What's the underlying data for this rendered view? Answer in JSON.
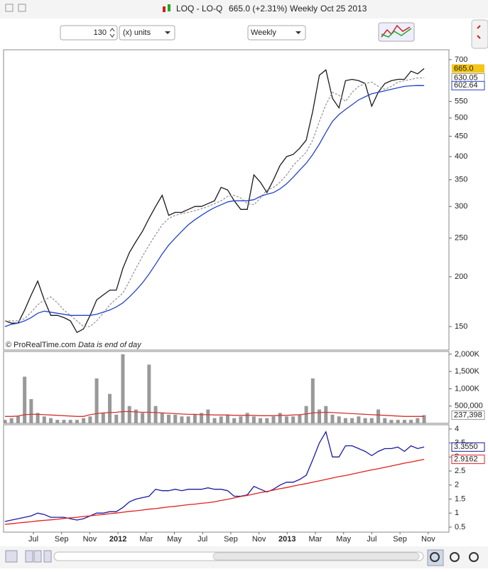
{
  "header": {
    "symbol": "LOQ - LO-Q",
    "quote": "665.0 (+2.31%)",
    "period": "Weekly",
    "date": "Oct 25 2013"
  },
  "toolbar": {
    "units_count": "130",
    "units": "(x) units",
    "timeframe": "Weekly"
  },
  "footer": {
    "copyright": "© ProRealTime.com",
    "note": "Data is end of day"
  },
  "chart_data": [
    {
      "type": "line",
      "log_scale": true,
      "ylim": [
        131,
        741
      ],
      "yticks": [
        150,
        200,
        250,
        300,
        350,
        400,
        450,
        500,
        550,
        700
      ],
      "series": [
        {
          "name": "Close",
          "color": "#1a1a1a",
          "label_bg": "#f5c518",
          "values": [
            155,
            153,
            153,
            165,
            180,
            195,
            175,
            160,
            160,
            158,
            155,
            145,
            148,
            160,
            175,
            180,
            185,
            185,
            210,
            230,
            245,
            260,
            280,
            300,
            320,
            285,
            290,
            290,
            295,
            300,
            300,
            305,
            310,
            335,
            330,
            310,
            295,
            295,
            360,
            345,
            325,
            350,
            380,
            400,
            405,
            420,
            440,
            520,
            640,
            660,
            560,
            530,
            620,
            625,
            620,
            610,
            535,
            580,
            610,
            620,
            625,
            625,
            655,
            645,
            665
          ],
          "value_labels": [
            null,
            null,
            null,
            null,
            null,
            null,
            null,
            null,
            null,
            null,
            null,
            null,
            null,
            null,
            null,
            null,
            null,
            null,
            null,
            null,
            null,
            null,
            null,
            null,
            null,
            null,
            null,
            null,
            null,
            null,
            null,
            null,
            null,
            null,
            null,
            null,
            null,
            null,
            null,
            null,
            null,
            null,
            null,
            null,
            null,
            null,
            null,
            null,
            null,
            null,
            null,
            null,
            null,
            null,
            null,
            null,
            null,
            null,
            null,
            null,
            null,
            null,
            null,
            null,
            "665.0"
          ]
        },
        {
          "name": "MA 10",
          "color": "#999999",
          "dashed": true,
          "values": [
            155,
            155,
            155,
            157,
            163,
            170,
            175,
            178,
            172,
            165,
            160,
            155,
            150,
            150,
            155,
            162,
            170,
            176,
            182,
            195,
            210,
            225,
            240,
            255,
            270,
            280,
            285,
            288,
            290,
            293,
            296,
            300,
            305,
            310,
            318,
            320,
            315,
            305,
            303,
            315,
            330,
            335,
            345,
            360,
            380,
            395,
            410,
            440,
            490,
            540,
            580,
            570,
            550,
            580,
            600,
            610,
            615,
            600,
            590,
            600,
            615,
            620,
            625,
            630,
            630.05
          ]
        },
        {
          "name": "MA 26",
          "color": "#2443c8",
          "values": [
            150,
            152,
            153,
            155,
            158,
            162,
            164,
            163,
            162,
            161,
            160,
            160,
            160,
            160,
            161,
            163,
            165,
            168,
            172,
            178,
            185,
            193,
            203,
            215,
            228,
            240,
            250,
            260,
            270,
            278,
            285,
            292,
            298,
            303,
            308,
            310,
            310,
            310,
            312,
            318,
            322,
            325,
            332,
            342,
            355,
            370,
            385,
            405,
            430,
            460,
            490,
            510,
            525,
            540,
            555,
            565,
            575,
            580,
            585,
            590,
            595,
            600,
            602,
            603,
            602.64
          ]
        }
      ]
    },
    {
      "type": "bar",
      "ylim": [
        0,
        2080000
      ],
      "yticks": [
        {
          "value": 500000,
          "label": "500,000"
        },
        {
          "value": 1000000,
          "label": "1,000K"
        },
        {
          "value": 1500000,
          "label": "1,500K"
        },
        {
          "value": 2000000,
          "label": "2,000K"
        }
      ],
      "series": [
        {
          "name": "Volume",
          "color": "#999999",
          "values": [
            100000,
            150000,
            200000,
            1350000,
            700000,
            300000,
            200000,
            150000,
            100000,
            100000,
            100000,
            100000,
            150000,
            200000,
            1300000,
            300000,
            850000,
            250000,
            2000000,
            500000,
            400000,
            300000,
            1700000,
            500000,
            300000,
            250000,
            250000,
            200000,
            200000,
            250000,
            300000,
            400000,
            150000,
            200000,
            250000,
            150000,
            200000,
            300000,
            200000,
            150000,
            150000,
            200000,
            300000,
            200000,
            200000,
            250000,
            500000,
            1300000,
            400000,
            500000,
            250000,
            200000,
            150000,
            150000,
            200000,
            150000,
            150000,
            400000,
            150000,
            100000,
            100000,
            100000,
            100000,
            150000,
            237398
          ],
          "value_labels": [
            null,
            null,
            null,
            null,
            null,
            null,
            null,
            null,
            null,
            null,
            null,
            null,
            null,
            null,
            null,
            null,
            null,
            null,
            null,
            null,
            null,
            null,
            null,
            null,
            null,
            null,
            null,
            null,
            null,
            null,
            null,
            null,
            null,
            null,
            null,
            null,
            null,
            null,
            null,
            null,
            null,
            null,
            null,
            null,
            null,
            null,
            null,
            null,
            null,
            null,
            null,
            null,
            null,
            null,
            null,
            null,
            null,
            null,
            null,
            null,
            null,
            null,
            null,
            null,
            "237,398"
          ]
        },
        {
          "name": "Volume MA",
          "color": "#d33333",
          "type": "line",
          "no_label": true,
          "values": [
            200000,
            200000,
            210000,
            250000,
            260000,
            260000,
            250000,
            240000,
            230000,
            220000,
            210000,
            200000,
            200000,
            250000,
            280000,
            300000,
            310000,
            320000,
            340000,
            340000,
            330000,
            320000,
            320000,
            310000,
            300000,
            290000,
            280000,
            270000,
            260000,
            260000,
            250000,
            250000,
            240000,
            240000,
            240000,
            230000,
            230000,
            230000,
            230000,
            220000,
            220000,
            220000,
            230000,
            230000,
            240000,
            250000,
            270000,
            300000,
            310000,
            320000,
            310000,
            300000,
            290000,
            280000,
            270000,
            260000,
            250000,
            240000,
            230000,
            220000,
            210000,
            200000,
            200000,
            200000,
            200000
          ]
        }
      ]
    },
    {
      "type": "line",
      "ylim": [
        0.32,
        4.15
      ],
      "yticks": [
        0.5,
        1,
        1.5,
        2,
        2.5,
        3,
        3.5,
        4
      ],
      "xtick_labels": [
        "Jul",
        "Sep",
        "Nov",
        "2012",
        "Mar",
        "May",
        "Jul",
        "Sep",
        "Nov",
        "2013",
        "Mar",
        "May",
        "Jul",
        "Sep",
        "Nov"
      ],
      "series": [
        {
          "name": "Indicator",
          "color": "#1a1aa0",
          "values": [
            0.7,
            0.75,
            0.8,
            0.85,
            0.9,
            1.0,
            0.95,
            0.85,
            0.85,
            0.85,
            0.8,
            0.75,
            0.8,
            0.9,
            1.0,
            1.0,
            1.05,
            1.05,
            1.2,
            1.4,
            1.5,
            1.55,
            1.6,
            1.85,
            1.8,
            1.8,
            1.85,
            1.8,
            1.85,
            1.85,
            1.85,
            1.9,
            1.85,
            1.85,
            1.8,
            1.6,
            1.6,
            1.65,
            1.95,
            1.85,
            1.75,
            1.85,
            2.0,
            2.1,
            2.1,
            2.2,
            2.35,
            2.9,
            3.5,
            3.9,
            3.0,
            3.0,
            3.4,
            3.4,
            3.3,
            3.2,
            3.05,
            3.2,
            3.3,
            3.3,
            3.35,
            3.2,
            3.4,
            3.3,
            3.355
          ],
          "value_labels": [
            null,
            null,
            null,
            null,
            null,
            null,
            null,
            null,
            null,
            null,
            null,
            null,
            null,
            null,
            null,
            null,
            null,
            null,
            null,
            null,
            null,
            null,
            null,
            null,
            null,
            null,
            null,
            null,
            null,
            null,
            null,
            null,
            null,
            null,
            null,
            null,
            null,
            null,
            null,
            null,
            null,
            null,
            null,
            null,
            null,
            null,
            null,
            null,
            null,
            null,
            null,
            null,
            null,
            null,
            null,
            null,
            null,
            null,
            null,
            null,
            null,
            null,
            null,
            null,
            "3.3550"
          ]
        },
        {
          "name": "Indicator MA",
          "color": "#e02020",
          "values": [
            0.6,
            0.62,
            0.65,
            0.67,
            0.69,
            0.72,
            0.74,
            0.76,
            0.78,
            0.81,
            0.83,
            0.85,
            0.88,
            0.9,
            0.93,
            0.95,
            0.98,
            1.0,
            1.03,
            1.06,
            1.08,
            1.11,
            1.14,
            1.16,
            1.19,
            1.22,
            1.24,
            1.27,
            1.3,
            1.32,
            1.35,
            1.37,
            1.4,
            1.45,
            1.49,
            1.54,
            1.59,
            1.63,
            1.68,
            1.73,
            1.77,
            1.82,
            1.87,
            1.91,
            1.96,
            2.01,
            2.05,
            2.1,
            2.15,
            2.2,
            2.25,
            2.3,
            2.34,
            2.39,
            2.44,
            2.49,
            2.54,
            2.58,
            2.63,
            2.68,
            2.73,
            2.78,
            2.82,
            2.87,
            2.9162
          ]
        }
      ]
    }
  ]
}
